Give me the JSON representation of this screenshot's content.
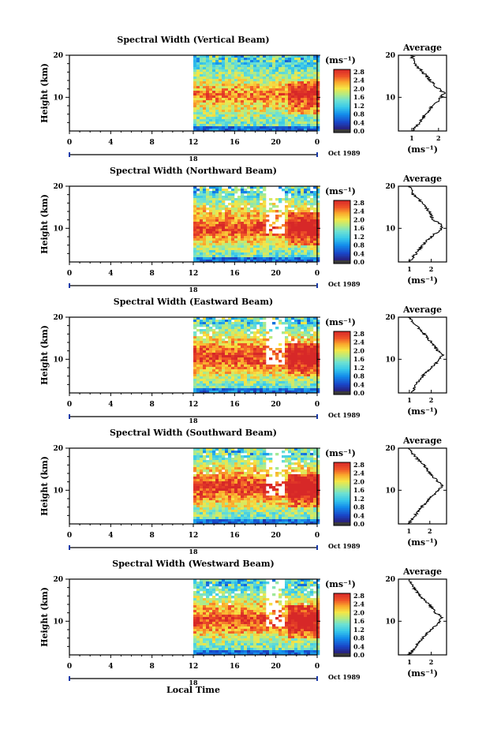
{
  "figure": {
    "x_axis_label": "Local Time",
    "y_axis_label": "Height (km)",
    "month_label": "Oct 1989",
    "day_label": "18",
    "unit_label": "(ms⁻¹)",
    "average_title": "Average",
    "colorbar_ticks": [
      "2.8",
      "2.4",
      "2.0",
      "1.6",
      "1.2",
      "0.8",
      "0.4",
      "0.0"
    ]
  },
  "chart_data": [
    {
      "type": "heatmap",
      "title": "Spectral Width (Vertical Beam)",
      "xlabel": "Local Time",
      "ylabel": "Height (km)",
      "xlim": [
        0,
        24
      ],
      "ylim": [
        2,
        20
      ],
      "x_ticks": [
        "0",
        "4",
        "8",
        "12",
        "16",
        "20",
        "0"
      ],
      "y_ticks": [
        "20",
        "10"
      ],
      "data_start_hour": 12,
      "colorbar": {
        "label": "(ms⁻¹)",
        "range": [
          0.0,
          3.0
        ]
      },
      "average_profile": {
        "xlabel": "(ms⁻¹)",
        "xlim": [
          0.5,
          2.3
        ],
        "x_ticks": [
          "1",
          "2"
        ],
        "height_km": [
          2,
          4,
          6,
          8,
          10,
          11,
          12,
          14,
          16,
          18,
          20
        ],
        "value": [
          1.0,
          1.3,
          1.5,
          1.8,
          2.1,
          2.2,
          2.0,
          1.7,
          1.4,
          1.1,
          1.0
        ]
      }
    },
    {
      "type": "heatmap",
      "title": "Spectral Width (Northward Beam)",
      "xlabel": "Local Time",
      "ylabel": "Height (km)",
      "xlim": [
        0,
        24
      ],
      "ylim": [
        2,
        20
      ],
      "x_ticks": [
        "0",
        "4",
        "8",
        "12",
        "16",
        "20",
        "0"
      ],
      "y_ticks": [
        "20",
        "10"
      ],
      "data_start_hour": 12,
      "colorbar": {
        "label": "(ms⁻¹)",
        "range": [
          0.0,
          3.0
        ]
      },
      "average_profile": {
        "xlabel": "(ms⁻¹)",
        "xlim": [
          0.5,
          2.7
        ],
        "x_ticks": [
          "1",
          "2"
        ],
        "height_km": [
          2,
          4,
          6,
          8,
          10,
          11,
          12,
          14,
          16,
          18,
          20
        ],
        "value": [
          1.0,
          1.3,
          1.6,
          2.0,
          2.5,
          2.4,
          2.1,
          1.9,
          1.6,
          1.2,
          1.0
        ]
      }
    },
    {
      "type": "heatmap",
      "title": "Spectral Width (Eastward Beam)",
      "xlabel": "Local Time",
      "ylabel": "Height (km)",
      "xlim": [
        0,
        24
      ],
      "ylim": [
        2,
        20
      ],
      "x_ticks": [
        "0",
        "4",
        "8",
        "12",
        "16",
        "20",
        "0"
      ],
      "y_ticks": [
        "20",
        "10"
      ],
      "data_start_hour": 12,
      "colorbar": {
        "label": "(ms⁻¹)",
        "range": [
          0.0,
          3.0
        ]
      },
      "average_profile": {
        "xlabel": "(ms⁻¹)",
        "xlim": [
          0.5,
          2.7
        ],
        "x_ticks": [
          "1",
          "2"
        ],
        "height_km": [
          2,
          4,
          6,
          8,
          10,
          11,
          12,
          14,
          16,
          18,
          20
        ],
        "value": [
          1.1,
          1.3,
          1.6,
          2.0,
          2.4,
          2.5,
          2.3,
          2.0,
          1.7,
          1.3,
          1.0
        ]
      }
    },
    {
      "type": "heatmap",
      "title": "Spectral Width (Southward Beam)",
      "xlabel": "Local Time",
      "ylabel": "Height (km)",
      "xlim": [
        0,
        24
      ],
      "ylim": [
        2,
        20
      ],
      "x_ticks": [
        "0",
        "4",
        "8",
        "12",
        "16",
        "20",
        "0"
      ],
      "y_ticks": [
        "20",
        "10"
      ],
      "data_start_hour": 12,
      "colorbar": {
        "label": "(ms⁻¹)",
        "range": [
          0.0,
          3.0
        ]
      },
      "average_profile": {
        "xlabel": "(ms⁻¹)",
        "xlim": [
          0.5,
          2.8
        ],
        "x_ticks": [
          "1",
          "2"
        ],
        "height_km": [
          2,
          4,
          6,
          8,
          10,
          11,
          12,
          14,
          16,
          18,
          20
        ],
        "value": [
          1.0,
          1.3,
          1.6,
          2.0,
          2.4,
          2.6,
          2.4,
          2.0,
          1.7,
          1.3,
          1.0
        ]
      }
    },
    {
      "type": "heatmap",
      "title": "Spectral Width (Westward Beam)",
      "xlabel": "Local Time",
      "ylabel": "Height (km)",
      "xlim": [
        0,
        24
      ],
      "ylim": [
        2,
        20
      ],
      "x_ticks": [
        "0",
        "4",
        "8",
        "12",
        "16",
        "20",
        "0"
      ],
      "y_ticks": [
        "20",
        "10"
      ],
      "data_start_hour": 12,
      "colorbar": {
        "label": "(ms⁻¹)",
        "range": [
          0.0,
          3.0
        ]
      },
      "average_profile": {
        "xlabel": "(ms⁻¹)",
        "xlim": [
          0.5,
          2.7
        ],
        "x_ticks": [
          "1",
          "2"
        ],
        "height_km": [
          2,
          4,
          6,
          8,
          10,
          11,
          12,
          14,
          16,
          18,
          20
        ],
        "value": [
          1.0,
          1.3,
          1.6,
          2.0,
          2.4,
          2.5,
          2.2,
          1.9,
          1.5,
          1.2,
          1.0
        ]
      }
    }
  ]
}
